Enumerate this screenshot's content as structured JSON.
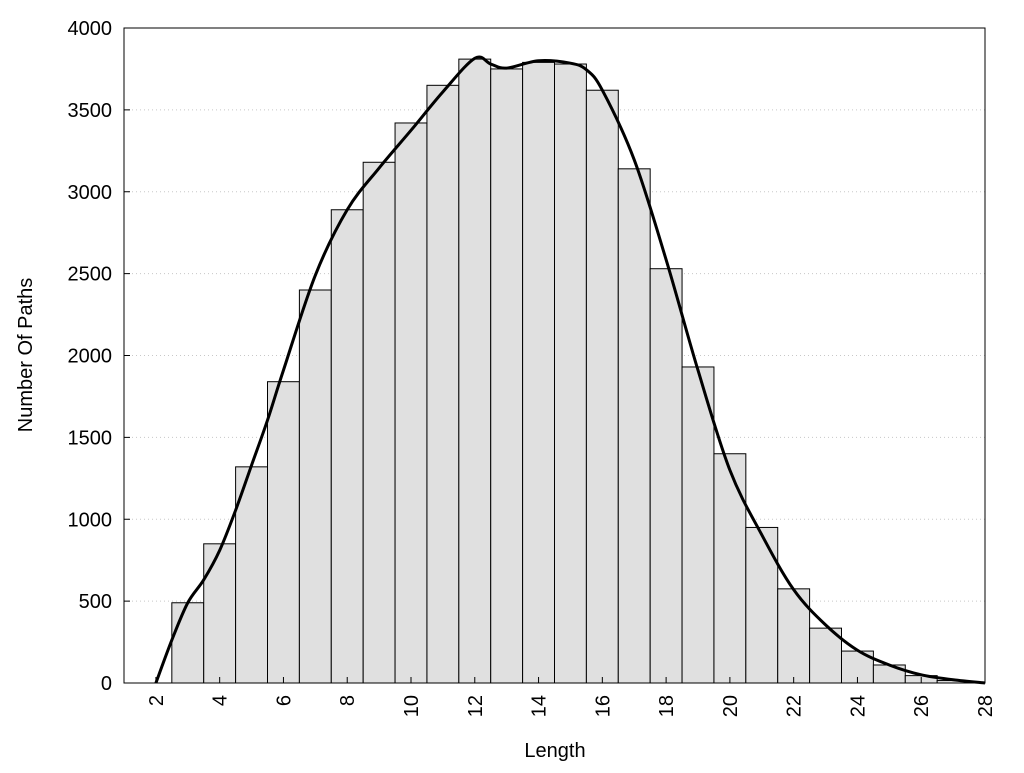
{
  "chart_data": {
    "type": "histogram",
    "xlabel": "Length",
    "ylabel": "Number Of Paths",
    "bins": [
      2.5,
      3.5,
      4.5,
      5.5,
      6.5,
      7.5,
      8.5,
      9.5,
      10.5,
      11.5,
      12.5,
      13.5,
      14.5,
      15.5,
      16.5,
      17.5,
      18.5,
      19.5,
      20.5,
      21.5,
      22.5,
      23.5,
      24.5,
      25.5,
      26.5,
      27.5
    ],
    "values": [
      490,
      850,
      1320,
      1840,
      2400,
      2890,
      3180,
      3420,
      3650,
      3810,
      3750,
      3790,
      3780,
      3620,
      3140,
      2530,
      1930,
      1400,
      950,
      575,
      335,
      195,
      110,
      45,
      15
    ],
    "color": "#e0e0e0",
    "line": {
      "color": "#000000",
      "x": [
        2,
        2.5,
        3,
        3.5,
        4,
        4.5,
        5,
        5.5,
        6,
        7,
        8,
        9,
        10,
        11,
        12,
        12.5,
        13,
        14,
        15,
        15.5,
        16,
        17,
        18,
        19,
        20,
        21,
        22,
        23,
        24,
        25,
        26,
        27,
        28
      ],
      "values": [
        0,
        262,
        490,
        630,
        810,
        1055,
        1330,
        1605,
        1910,
        2490,
        2890,
        3145,
        3375,
        3610,
        3815,
        3780,
        3755,
        3800,
        3785,
        3745,
        3620,
        3195,
        2585,
        1910,
        1300,
        905,
        570,
        355,
        200,
        110,
        50,
        20,
        0
      ]
    },
    "xlim": [
      1,
      28
    ],
    "xticks": [
      2,
      4,
      6,
      8,
      10,
      12,
      14,
      16,
      18,
      20,
      22,
      24,
      26,
      28
    ],
    "ylim": [
      0,
      4000
    ],
    "yticks": [
      0,
      500,
      1000,
      1500,
      2000,
      2500,
      3000,
      3500,
      4000
    ],
    "grid": true
  }
}
